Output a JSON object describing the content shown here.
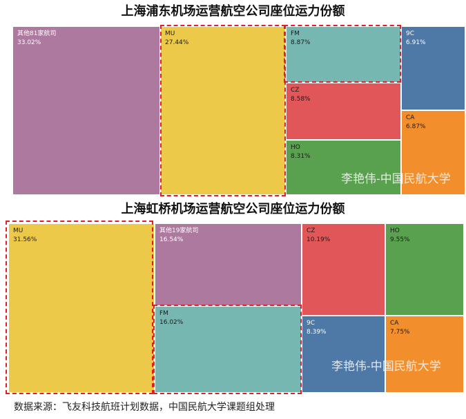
{
  "chart_data": [
    {
      "type": "treemap",
      "title": "上海浦东机场运营航空公司座位运力份额",
      "items": [
        {
          "name": "其他81家航司",
          "value": 33.02,
          "label": "33.02%",
          "color": "#ad799f"
        },
        {
          "name": "MU",
          "value": 27.44,
          "label": "27.44%",
          "color": "#edc949",
          "highlighted": true
        },
        {
          "name": "FM",
          "value": 8.87,
          "label": "8.87%",
          "color": "#76b7b2",
          "highlighted": true
        },
        {
          "name": "CZ",
          "value": 8.58,
          "label": "8.58%",
          "color": "#e15759"
        },
        {
          "name": "HO",
          "value": 8.31,
          "label": "8.31%",
          "color": "#59a14f"
        },
        {
          "name": "9C",
          "value": 6.91,
          "label": "6.91%",
          "color": "#4e79a7"
        },
        {
          "name": "CA",
          "value": 6.87,
          "label": "6.87%",
          "color": "#f28e2b"
        }
      ],
      "watermark": "李艳伟-中国民航大学"
    },
    {
      "type": "treemap",
      "title": "上海虹桥机场运营航空公司座位运力份额",
      "items": [
        {
          "name": "MU",
          "value": 31.56,
          "label": "31.56%",
          "color": "#edc949",
          "highlighted": true
        },
        {
          "name": "其他19家航司",
          "value": 16.54,
          "label": "16.54%",
          "color": "#ad799f"
        },
        {
          "name": "FM",
          "value": 16.02,
          "label": "16.02%",
          "color": "#76b7b2",
          "highlighted": true
        },
        {
          "name": "CZ",
          "value": 10.19,
          "label": "10.19%",
          "color": "#e15759"
        },
        {
          "name": "HO",
          "value": 9.55,
          "label": "9.55%",
          "color": "#59a14f"
        },
        {
          "name": "9C",
          "value": 8.39,
          "label": "8.39%",
          "color": "#4e79a7"
        },
        {
          "name": "CA",
          "value": 7.75,
          "label": "7.75%",
          "color": "#f28e2b"
        }
      ],
      "watermark": "李艳伟-中国民航大学"
    }
  ],
  "source_note": "数据来源：飞友科技航班计划数据，中国民航大学课题组处理"
}
